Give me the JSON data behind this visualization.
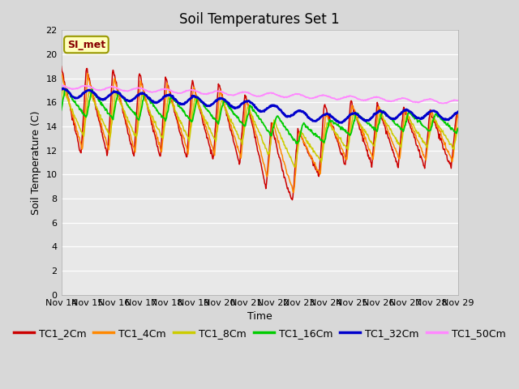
{
  "title": "Soil Temperatures Set 1",
  "xlabel": "Time",
  "ylabel": "Soil Temperature (C)",
  "annotation": "SI_met",
  "ylim": [
    0,
    22
  ],
  "yticks": [
    0,
    2,
    4,
    6,
    8,
    10,
    12,
    14,
    16,
    18,
    20,
    22
  ],
  "x_labels": [
    "Nov 14",
    "Nov 15",
    "Nov 16",
    "Nov 17",
    "Nov 18",
    "Nov 19",
    "Nov 20",
    "Nov 21",
    "Nov 22",
    "Nov 23",
    "Nov 24",
    "Nov 25",
    "Nov 26",
    "Nov 27",
    "Nov 28",
    "Nov 29"
  ],
  "series_colors": [
    "#cc0000",
    "#ff8800",
    "#cccc00",
    "#00cc00",
    "#0000cc",
    "#ff88ff"
  ],
  "series_labels": [
    "TC1_2Cm",
    "TC1_4Cm",
    "TC1_8Cm",
    "TC1_16Cm",
    "TC1_32Cm",
    "TC1_50Cm"
  ],
  "fig_bg_color": "#d8d8d8",
  "plot_bg_color": "#e8e8e8",
  "n_points": 720,
  "title_fontsize": 12,
  "axis_fontsize": 9,
  "tick_fontsize": 8,
  "legend_fontsize": 9
}
